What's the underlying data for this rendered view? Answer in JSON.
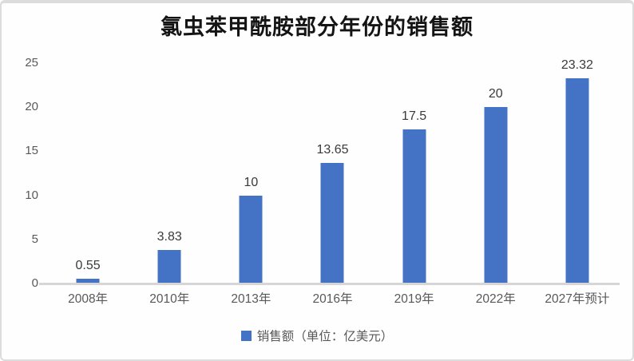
{
  "chart_data": {
    "type": "bar",
    "title": "氯虫苯甲酰胺部分年份的销售额",
    "categories": [
      "2008年",
      "2010年",
      "2013年",
      "2016年",
      "2019年",
      "2022年",
      "2027年预计"
    ],
    "values": [
      0.55,
      3.83,
      10,
      13.65,
      17.5,
      20,
      23.32
    ],
    "value_labels": [
      "0.55",
      "3.83",
      "10",
      "13.65",
      "17.5",
      "20",
      "23.32"
    ],
    "y_ticks": [
      0,
      5,
      10,
      15,
      20,
      25
    ],
    "ylim": [
      0,
      25
    ],
    "xlabel": "",
    "ylabel": "",
    "grid": false,
    "legend_position": "bottom",
    "series": [
      {
        "name": "销售额（单位：亿美元）",
        "values": [
          0.55,
          3.83,
          10,
          13.65,
          17.5,
          20,
          23.32
        ]
      }
    ]
  },
  "legend": {
    "label": "销售额（单位：亿美元）",
    "swatch_color": "#4472c4"
  },
  "colors": {
    "bar": "#4472c4",
    "axis_line": "#d6d6d6",
    "tick_label": "#595959",
    "data_label": "#3a3a3a",
    "title": "#141414",
    "card_border": "#dcdcdc"
  }
}
